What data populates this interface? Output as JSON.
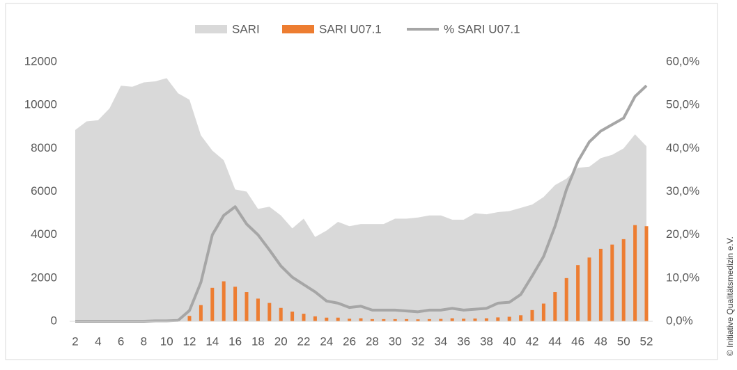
{
  "chart_data": {
    "type": "combo",
    "categories": [
      "2",
      null,
      "4",
      null,
      "6",
      null,
      "8",
      null,
      "10",
      null,
      "12",
      null,
      "14",
      null,
      "16",
      null,
      "18",
      null,
      "20",
      null,
      "22",
      null,
      "24",
      null,
      "26",
      null,
      "28",
      null,
      "30",
      null,
      "32",
      null,
      "34",
      null,
      "36",
      null,
      "38",
      null,
      "40",
      null,
      "42",
      null,
      "44",
      null,
      "46",
      null,
      "48",
      null,
      "50",
      null,
      "52"
    ],
    "series": [
      {
        "name": "SARI",
        "type": "area",
        "color": "#d9d9d9",
        "axis": "y",
        "values": [
          8850,
          9250,
          9300,
          9850,
          10900,
          10850,
          11050,
          11100,
          11250,
          10550,
          10250,
          8600,
          7900,
          7450,
          6100,
          6000,
          5200,
          5300,
          4900,
          4300,
          4750,
          3900,
          4200,
          4600,
          4400,
          4500,
          4500,
          4500,
          4750,
          4750,
          4800,
          4900,
          4900,
          4700,
          4700,
          5000,
          4950,
          5050,
          5100,
          5250,
          5400,
          5750,
          6300,
          6600,
          7100,
          7150,
          7550,
          7700,
          8000,
          8650,
          8100
        ]
      },
      {
        "name": "SARI U07.1",
        "type": "bar",
        "color": "#ed7d31",
        "axis": "y",
        "values": [
          0,
          0,
          0,
          0,
          0,
          0,
          0,
          20,
          20,
          30,
          250,
          750,
          1550,
          1850,
          1600,
          1350,
          1050,
          850,
          620,
          450,
          350,
          230,
          170,
          170,
          120,
          140,
          100,
          100,
          100,
          100,
          90,
          100,
          110,
          140,
          120,
          130,
          140,
          180,
          210,
          280,
          520,
          820,
          1350,
          2000,
          2600,
          2950,
          3350,
          3550,
          3800,
          4450,
          4400
        ]
      },
      {
        "name": "% SARI U07.1",
        "type": "line",
        "color": "#a6a6a6",
        "axis": "y2",
        "values": [
          0,
          0,
          0,
          0,
          0,
          0,
          0,
          0.1,
          0.1,
          0.2,
          2.5,
          9,
          20,
          24.5,
          26.5,
          22.5,
          20,
          16.5,
          12.8,
          10.2,
          8.5,
          6.8,
          4.7,
          4.2,
          3.2,
          3.5,
          2.6,
          2.6,
          2.6,
          2.4,
          2.2,
          2.6,
          2.6,
          3.0,
          2.6,
          2.8,
          3.0,
          4.2,
          4.4,
          6.2,
          10.5,
          15,
          22,
          30.5,
          37,
          41.5,
          44,
          45.5,
          47,
          52,
          54.5
        ]
      }
    ],
    "ylim": [
      0,
      12000
    ],
    "yticks": [
      0,
      2000,
      4000,
      6000,
      8000,
      10000,
      12000
    ],
    "y2lim": [
      0,
      60
    ],
    "y2ticks": [
      {
        "value": 0,
        "label": "0,0%"
      },
      {
        "value": 10,
        "label": "10,0%"
      },
      {
        "value": 20,
        "label": "20,0%"
      },
      {
        "value": 30,
        "label": "30,0%"
      },
      {
        "value": 40,
        "label": "40,0%"
      },
      {
        "value": 50,
        "label": "50,0%"
      },
      {
        "value": 60,
        "label": "60,0%"
      }
    ],
    "grid": false,
    "legend": "top",
    "credit": "© Initiative Qualitätsmedizin e.V."
  }
}
